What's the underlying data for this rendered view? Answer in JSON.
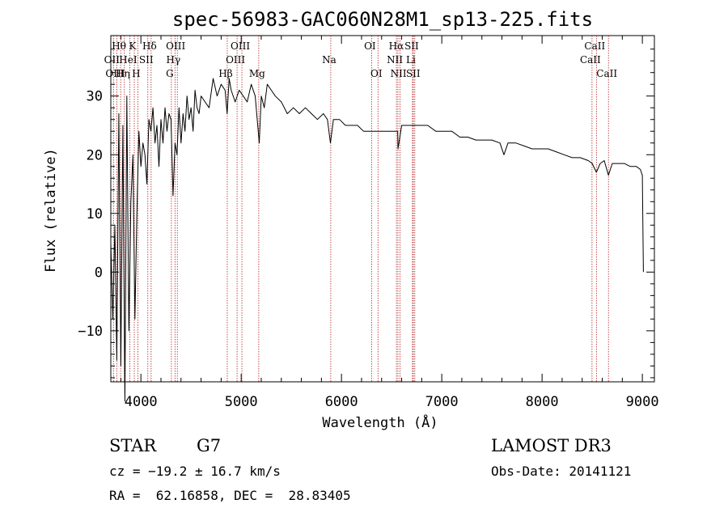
{
  "chart_data": {
    "type": "line",
    "title": "spec-56983-GAC060N28M1_sp13-225.fits",
    "xlabel": "Wavelength (Å)",
    "ylabel": "Flux (relative)",
    "xlim": [
      3700,
      9120
    ],
    "ylim": [
      -18.7,
      40.3
    ],
    "xticks": [
      4000,
      5000,
      6000,
      7000,
      8000,
      9000
    ],
    "yticks": [
      -10,
      0,
      10,
      20,
      30
    ],
    "xtick_labels": [
      "4000",
      "5000",
      "6000",
      "7000",
      "8000",
      "9000"
    ],
    "ytick_labels": [
      "−10",
      "0",
      "10",
      "20",
      "30"
    ],
    "line_color": "#000000",
    "marker_color": "#b22222",
    "series": [
      {
        "name": "spectrum",
        "x": [
          3700,
          3720,
          3740,
          3760,
          3780,
          3800,
          3820,
          3840,
          3860,
          3880,
          3900,
          3920,
          3940,
          3960,
          3980,
          4000,
          4020,
          4040,
          4060,
          4080,
          4100,
          4120,
          4140,
          4160,
          4180,
          4200,
          4220,
          4240,
          4260,
          4280,
          4300,
          4320,
          4340,
          4360,
          4380,
          4400,
          4420,
          4440,
          4460,
          4480,
          4500,
          4520,
          4540,
          4560,
          4580,
          4600,
          4640,
          4680,
          4720,
          4760,
          4800,
          4840,
          4860,
          4880,
          4900,
          4940,
          4980,
          5020,
          5060,
          5100,
          5140,
          5180,
          5200,
          5230,
          5260,
          5300,
          5340,
          5400,
          5460,
          5520,
          5580,
          5640,
          5700,
          5760,
          5820,
          5860,
          5890,
          5920,
          5980,
          6040,
          6100,
          6160,
          6220,
          6280,
          6340,
          6400,
          6460,
          6520,
          6560,
          6563,
          6600,
          6660,
          6720,
          6780,
          6860,
          6940,
          7020,
          7100,
          7180,
          7260,
          7340,
          7420,
          7500,
          7580,
          7620,
          7660,
          7740,
          7820,
          7900,
          7980,
          8060,
          8140,
          8220,
          8300,
          8380,
          8460,
          8500,
          8542,
          8580,
          8620,
          8662,
          8700,
          8760,
          8820,
          8880,
          8940,
          8980,
          9000,
          9010
        ],
        "y": [
          5,
          -8,
          8,
          -15,
          27,
          -16,
          25,
          -22,
          30,
          -10,
          12,
          20,
          -8,
          10,
          24,
          18,
          22,
          20,
          15,
          26,
          24,
          28,
          22,
          25,
          18,
          26,
          22,
          28,
          24,
          27,
          26,
          13,
          22,
          20,
          28,
          22,
          27,
          24,
          30,
          26,
          28,
          24,
          31,
          28,
          27,
          30,
          29,
          28,
          33,
          30,
          32,
          31,
          27,
          33,
          31,
          29,
          31,
          30,
          29,
          32,
          30,
          22,
          30,
          28,
          32,
          31,
          30,
          29,
          27,
          28,
          27,
          28,
          27,
          26,
          27,
          26,
          22,
          26,
          26,
          25,
          25,
          25,
          24,
          24,
          24,
          24,
          24,
          24,
          24,
          21,
          25,
          25,
          25,
          25,
          25,
          24,
          24,
          24,
          23,
          23,
          22.5,
          22.5,
          22.5,
          22,
          20,
          22,
          22,
          21.5,
          21,
          21,
          21,
          20.5,
          20,
          19.5,
          19.5,
          19,
          18.5,
          17,
          18.5,
          19,
          16.5,
          18.5,
          18.5,
          18.5,
          18,
          18,
          17.5,
          16.5,
          0
        ]
      }
    ],
    "lines": [
      {
        "name": "Hθ",
        "x": 3798,
        "row": 1
      },
      {
        "name": "OII",
        "x": 3727,
        "row": 2
      },
      {
        "name": "OIII",
        "x": 3760,
        "row": 3
      },
      {
        "name": "K",
        "x": 3934,
        "row": 1
      },
      {
        "name": "HeI",
        "x": 3889,
        "row": 2
      },
      {
        "name": "Hη",
        "x": 3835,
        "row": 3
      },
      {
        "name": "SII",
        "x": 4069,
        "row": 2
      },
      {
        "name": "H",
        "x": 3969,
        "row": 3
      },
      {
        "name": "Hδ",
        "x": 4102,
        "row": 1
      },
      {
        "name": "OIII",
        "x": 4363,
        "row": 1
      },
      {
        "name": "Hγ",
        "x": 4340,
        "row": 2
      },
      {
        "name": "G",
        "x": 4304,
        "row": 3
      },
      {
        "name": "OIII",
        "x": 5007,
        "row": 1
      },
      {
        "name": "OIII",
        "x": 4959,
        "row": 2
      },
      {
        "name": "Hβ",
        "x": 4861,
        "row": 3
      },
      {
        "name": "Mg",
        "x": 5175,
        "row": 3
      },
      {
        "name": "Na",
        "x": 5893,
        "row": 2
      },
      {
        "name": "OI",
        "x": 6300,
        "row": 1
      },
      {
        "name": "OI",
        "x": 6364,
        "row": 3
      },
      {
        "name": "Hα",
        "x": 6563,
        "row": 1
      },
      {
        "name": "SII",
        "x": 6716,
        "row": 1
      },
      {
        "name": "NII",
        "x": 6548,
        "row": 2
      },
      {
        "name": "Li",
        "x": 6708,
        "row": 2
      },
      {
        "name": "NII",
        "x": 6584,
        "row": 3
      },
      {
        "name": "SII",
        "x": 6731,
        "row": 3
      },
      {
        "name": "CaII",
        "x": 8542,
        "row": 1
      },
      {
        "name": "CaII",
        "x": 8498,
        "row": 2
      },
      {
        "name": "CaII",
        "x": 8662,
        "row": 3
      }
    ]
  },
  "info": {
    "object_class": "STAR",
    "subclass": "G7",
    "survey": "LAMOST DR3",
    "redshift": "cz = −19.2 ± 16.7 km/s",
    "obs_date": "Obs-Date: 20141121",
    "coords": "RA =  62.16858, DEC =  28.83405"
  }
}
